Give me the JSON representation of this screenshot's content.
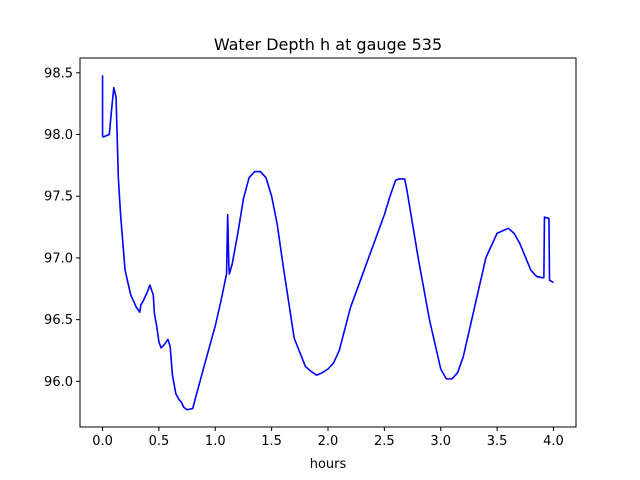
{
  "chart_data": {
    "type": "line",
    "title": "Water Depth h at gauge 535",
    "xlabel": "hours",
    "ylabel": "",
    "xlim": [
      -0.2,
      4.2
    ],
    "ylim": [
      95.63,
      98.62
    ],
    "xticks": [
      0.0,
      0.5,
      1.0,
      1.5,
      2.0,
      2.5,
      3.0,
      3.5,
      4.0
    ],
    "xtick_labels": [
      "0.0",
      "0.5",
      "1.0",
      "1.5",
      "2.0",
      "2.5",
      "3.0",
      "3.5",
      "4.0"
    ],
    "yticks": [
      96.0,
      96.5,
      97.0,
      97.5,
      98.0,
      98.5
    ],
    "ytick_labels": [
      "96.0",
      "96.5",
      "97.0",
      "97.5",
      "98.0",
      "98.5"
    ],
    "grid": false,
    "series": [
      {
        "color": "#0000ff",
        "x": [
          0.0,
          0.0,
          0.005,
          0.06,
          0.08,
          0.1,
          0.12,
          0.14,
          0.16,
          0.2,
          0.25,
          0.3,
          0.33,
          0.34,
          0.36,
          0.4,
          0.42,
          0.45,
          0.46,
          0.48,
          0.5,
          0.52,
          0.55,
          0.58,
          0.6,
          0.62,
          0.65,
          0.68,
          0.7,
          0.72,
          0.75,
          0.8,
          0.82,
          0.85,
          0.9,
          1.0,
          1.05,
          1.1,
          1.11,
          1.12,
          1.125,
          1.15,
          1.2,
          1.25,
          1.3,
          1.35,
          1.4,
          1.45,
          1.5,
          1.55,
          1.6,
          1.7,
          1.8,
          1.85,
          1.9,
          1.95,
          2.0,
          2.05,
          2.1,
          2.2,
          2.3,
          2.4,
          2.5,
          2.55,
          2.6,
          2.63,
          2.68,
          2.7,
          2.8,
          2.9,
          3.0,
          3.05,
          3.1,
          3.15,
          3.2,
          3.3,
          3.4,
          3.5,
          3.6,
          3.65,
          3.7,
          3.8,
          3.85,
          3.9,
          3.915,
          3.92,
          3.96,
          3.965,
          4.0
        ],
        "y": [
          98.48,
          97.99,
          97.98,
          98.0,
          98.2,
          98.38,
          98.3,
          97.65,
          97.35,
          96.9,
          96.7,
          96.6,
          96.56,
          96.62,
          96.65,
          96.73,
          96.78,
          96.7,
          96.55,
          96.45,
          96.32,
          96.27,
          96.3,
          96.34,
          96.28,
          96.05,
          95.9,
          95.85,
          95.83,
          95.79,
          95.77,
          95.78,
          95.85,
          95.95,
          96.12,
          96.45,
          96.65,
          96.87,
          97.35,
          96.95,
          96.87,
          96.95,
          97.2,
          97.48,
          97.65,
          97.7,
          97.7,
          97.65,
          97.5,
          97.27,
          96.95,
          96.35,
          96.12,
          96.08,
          96.05,
          96.07,
          96.1,
          96.15,
          96.25,
          96.6,
          96.85,
          97.1,
          97.35,
          97.5,
          97.63,
          97.64,
          97.64,
          97.55,
          97.0,
          96.5,
          96.1,
          96.02,
          96.02,
          96.07,
          96.2,
          96.6,
          97.0,
          97.2,
          97.24,
          97.2,
          97.12,
          96.9,
          96.85,
          96.84,
          96.84,
          97.33,
          97.32,
          96.82,
          96.8
        ]
      }
    ]
  }
}
